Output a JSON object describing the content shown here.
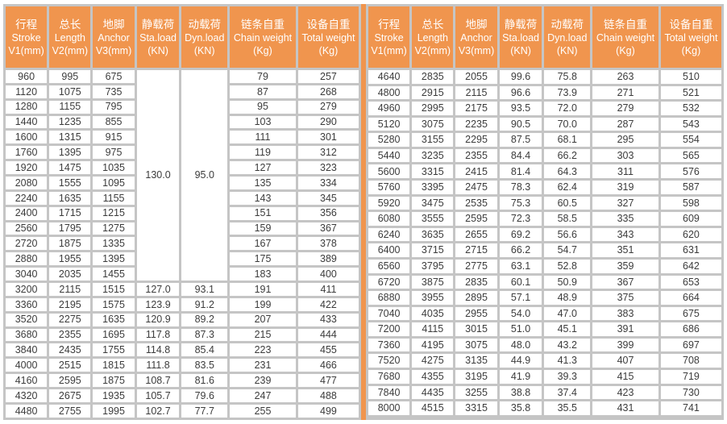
{
  "colors": {
    "header_bg": "#F0954E",
    "header_text": "#FFFFFF",
    "grid_gray": "#C5C5C5",
    "cell_bg": "#FFFFFF",
    "data_text": "#3C3C3C",
    "divider_orange": "#F0954E"
  },
  "columns": [
    {
      "key": "stroke",
      "cn": "行程",
      "en": "Stroke",
      "unit": "V1(mm)"
    },
    {
      "key": "length",
      "cn": "总长",
      "en": "Length",
      "unit": "V2(mm)"
    },
    {
      "key": "anchor",
      "cn": "地脚",
      "en": "Anchor",
      "unit": "V3(mm)"
    },
    {
      "key": "sta-load",
      "cn": "静载荷",
      "en": "Sta.load",
      "unit": "(KN)"
    },
    {
      "key": "dyn-load",
      "cn": "动载荷",
      "en": "Dyn.load",
      "unit": "(KN)"
    },
    {
      "key": "chain-weight",
      "cn": "链条自重",
      "en": "Chain weight",
      "unit": "(Kg)"
    },
    {
      "key": "total-weight",
      "cn": "设备自重",
      "en": "Total weight",
      "unit": "(Kg)"
    }
  ],
  "left_table": {
    "merged": {
      "rows": 14,
      "sta_load": "130.0",
      "dyn_load": "95.0"
    },
    "rows": [
      [
        "960",
        "995",
        "675",
        null,
        null,
        "79",
        "257"
      ],
      [
        "1120",
        "1075",
        "735",
        null,
        null,
        "87",
        "268"
      ],
      [
        "1280",
        "1155",
        "795",
        null,
        null,
        "95",
        "279"
      ],
      [
        "1440",
        "1235",
        "855",
        null,
        null,
        "103",
        "290"
      ],
      [
        "1600",
        "1315",
        "915",
        null,
        null,
        "111",
        "301"
      ],
      [
        "1760",
        "1395",
        "975",
        null,
        null,
        "119",
        "312"
      ],
      [
        "1920",
        "1475",
        "1035",
        null,
        null,
        "127",
        "323"
      ],
      [
        "2080",
        "1555",
        "1095",
        null,
        null,
        "135",
        "334"
      ],
      [
        "2240",
        "1635",
        "1155",
        null,
        null,
        "143",
        "345"
      ],
      [
        "2400",
        "1715",
        "1215",
        null,
        null,
        "151",
        "356"
      ],
      [
        "2560",
        "1795",
        "1275",
        null,
        null,
        "159",
        "367"
      ],
      [
        "2720",
        "1875",
        "1335",
        null,
        null,
        "167",
        "378"
      ],
      [
        "2880",
        "1955",
        "1395",
        null,
        null,
        "175",
        "389"
      ],
      [
        "3040",
        "2035",
        "1455",
        null,
        null,
        "183",
        "400"
      ],
      [
        "3200",
        "2115",
        "1515",
        "127.0",
        "93.1",
        "191",
        "411"
      ],
      [
        "3360",
        "2195",
        "1575",
        "123.9",
        "91.2",
        "199",
        "422"
      ],
      [
        "3520",
        "2275",
        "1635",
        "120.9",
        "89.2",
        "207",
        "433"
      ],
      [
        "3680",
        "2355",
        "1695",
        "117.8",
        "87.3",
        "215",
        "444"
      ],
      [
        "3840",
        "2435",
        "1755",
        "114.8",
        "85.4",
        "223",
        "455"
      ],
      [
        "4000",
        "2515",
        "1815",
        "111.8",
        "83.5",
        "231",
        "466"
      ],
      [
        "4160",
        "2595",
        "1875",
        "108.7",
        "81.6",
        "239",
        "477"
      ],
      [
        "4320",
        "2675",
        "1935",
        "105.7",
        "79.6",
        "247",
        "488"
      ],
      [
        "4480",
        "2755",
        "1995",
        "102.7",
        "77.7",
        "255",
        "499"
      ]
    ]
  },
  "right_table": {
    "merged": null,
    "rows": [
      [
        "4640",
        "2835",
        "2055",
        "99.6",
        "75.8",
        "263",
        "510"
      ],
      [
        "4800",
        "2915",
        "2115",
        "96.6",
        "73.9",
        "271",
        "521"
      ],
      [
        "4960",
        "2995",
        "2175",
        "93.5",
        "72.0",
        "279",
        "532"
      ],
      [
        "5120",
        "3075",
        "2235",
        "90.5",
        "70.0",
        "287",
        "543"
      ],
      [
        "5280",
        "3155",
        "2295",
        "87.5",
        "68.1",
        "295",
        "554"
      ],
      [
        "5440",
        "3235",
        "2355",
        "84.4",
        "66.2",
        "303",
        "565"
      ],
      [
        "5600",
        "3315",
        "2415",
        "81.4",
        "64.3",
        "311",
        "576"
      ],
      [
        "5760",
        "3395",
        "2475",
        "78.3",
        "62.4",
        "319",
        "587"
      ],
      [
        "5920",
        "3475",
        "2535",
        "75.3",
        "60.5",
        "327",
        "598"
      ],
      [
        "6080",
        "3555",
        "2595",
        "72.3",
        "58.5",
        "335",
        "609"
      ],
      [
        "6240",
        "3635",
        "2655",
        "69.2",
        "56.6",
        "343",
        "620"
      ],
      [
        "6400",
        "3715",
        "2715",
        "66.2",
        "54.7",
        "351",
        "631"
      ],
      [
        "6560",
        "3795",
        "2775",
        "63.1",
        "52.8",
        "359",
        "642"
      ],
      [
        "6720",
        "3875",
        "2835",
        "60.1",
        "50.9",
        "367",
        "653"
      ],
      [
        "6880",
        "3955",
        "2895",
        "57.1",
        "48.9",
        "375",
        "664"
      ],
      [
        "7040",
        "4035",
        "2955",
        "54.0",
        "47.0",
        "383",
        "675"
      ],
      [
        "7200",
        "4115",
        "3015",
        "51.0",
        "45.1",
        "391",
        "686"
      ],
      [
        "7360",
        "4195",
        "3075",
        "48.0",
        "43.2",
        "399",
        "697"
      ],
      [
        "7520",
        "4275",
        "3135",
        "44.9",
        "41.3",
        "407",
        "708"
      ],
      [
        "7680",
        "4355",
        "3195",
        "41.9",
        "39.3",
        "415",
        "719"
      ],
      [
        "7840",
        "4435",
        "3255",
        "38.8",
        "37.4",
        "423",
        "730"
      ],
      [
        "8000",
        "4515",
        "3315",
        "35.8",
        "35.5",
        "431",
        "741"
      ],
      [
        "",
        "",
        "",
        "",
        "",
        "",
        ""
      ]
    ]
  }
}
